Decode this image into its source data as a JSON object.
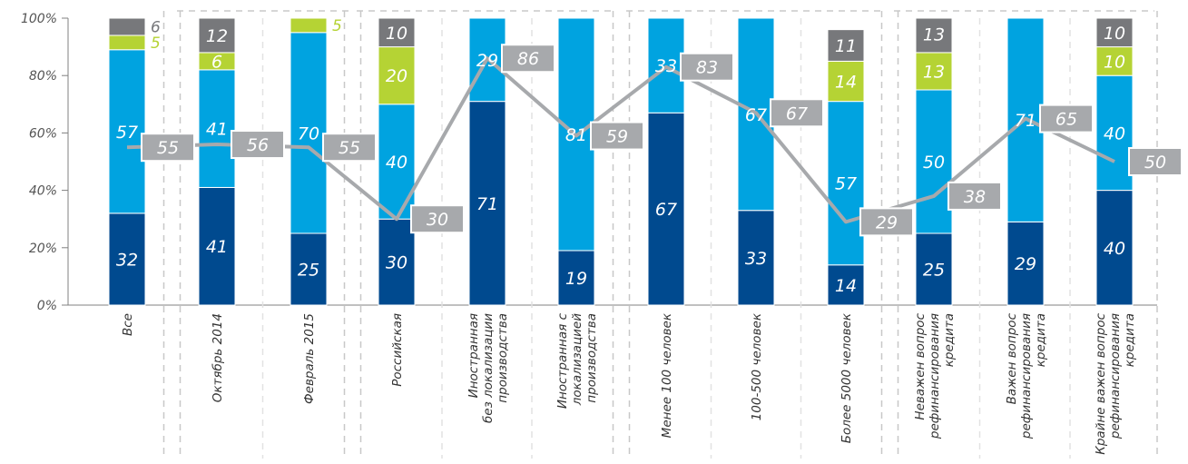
{
  "chart_data": {
    "type": "bar",
    "stacked": true,
    "ylim": [
      0,
      100
    ],
    "yticks": [
      "0%",
      "20%",
      "40%",
      "60%",
      "80%",
      "100%"
    ],
    "categories": [
      [
        "Все"
      ],
      [
        "Октябрь 2014"
      ],
      [
        "Февраль 2015"
      ],
      [
        "Российская"
      ],
      [
        "Иностранная",
        "без локализации",
        "производства"
      ],
      [
        "Иностранная с",
        "локализацией",
        "производства"
      ],
      [
        "Менее 100 человек"
      ],
      [
        "100-500 человек"
      ],
      [
        "Более 5000 человек"
      ],
      [
        "Неважен вопрос",
        "рефинансирования",
        "кредита"
      ],
      [
        "Важен вопрос",
        "рефинансирования",
        "кредита"
      ],
      [
        "Крайне важен вопрос",
        "рефинансирования",
        "кредита"
      ]
    ],
    "groups": [
      [
        0
      ],
      [
        1,
        2
      ],
      [
        3,
        4,
        5
      ],
      [
        6,
        7,
        8
      ],
      [
        9,
        10,
        11
      ]
    ],
    "series": [
      {
        "color": "#004a8f",
        "values": [
          32,
          41,
          25,
          30,
          71,
          19,
          67,
          33,
          14,
          25,
          29,
          40
        ]
      },
      {
        "color": "#00a3e0",
        "values": [
          57,
          41,
          70,
          40,
          29,
          81,
          33,
          67,
          57,
          50,
          71,
          40
        ]
      },
      {
        "color": "#b5d334",
        "values": [
          5,
          6,
          5,
          20,
          null,
          null,
          null,
          null,
          14,
          13,
          null,
          10
        ]
      },
      {
        "color": "#77787b",
        "values": [
          6,
          12,
          null,
          10,
          null,
          null,
          null,
          null,
          11,
          13,
          null,
          10
        ]
      }
    ],
    "line": {
      "color": "#a7a9ac",
      "values": [
        55,
        56,
        55,
        30,
        86,
        59,
        83,
        67,
        29,
        38,
        65,
        50
      ]
    }
  }
}
